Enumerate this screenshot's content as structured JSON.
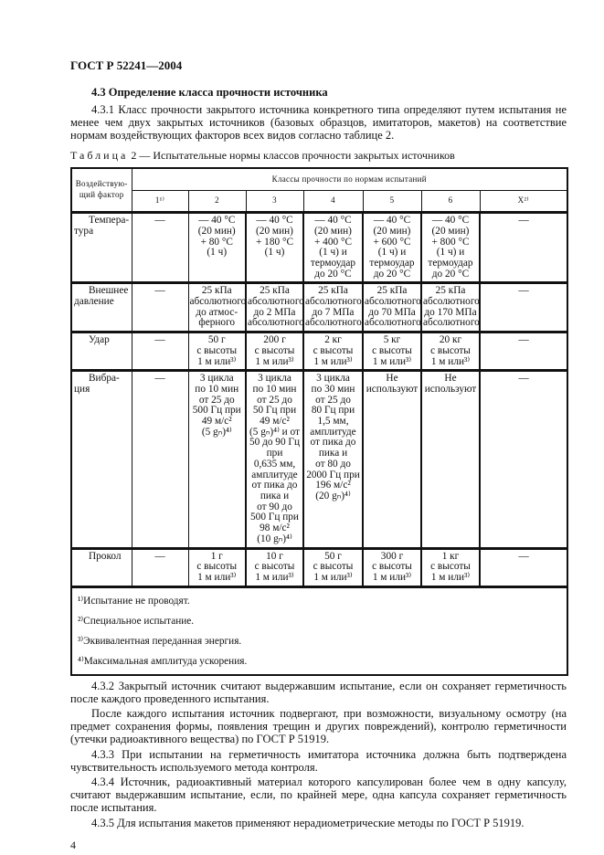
{
  "header": "ГОСТ Р 52241—2004",
  "section_title": "4.3 Определение класса прочности источника",
  "para_431": "4.3.1 Класс прочности закрытого источника конкретного типа определяют путем испытания не менее чем двух закрытых источников (базовых образцов, имитаторов, макетов) на соответствие нормам воздействующих факторов всех видов согласно таблице 2.",
  "table_caption": {
    "label": "Таблица",
    "rest": " 2 — Испытательные нормы классов прочности закрытых источников"
  },
  "table": {
    "factor_header": "Воздействую-щий фактор",
    "classes_header": "Классы прочности по нормам испытаний",
    "classes": [
      "1¹⁾",
      "2",
      "3",
      "4",
      "5",
      "6",
      "X²⁾"
    ],
    "rows": [
      {
        "factor": [
          "Темпера-",
          "тура"
        ],
        "cells": [
          [
            "—"
          ],
          [
            "— 40 °C",
            "(20 мин)",
            "+ 80 °C",
            "(1 ч)"
          ],
          [
            "— 40 °C",
            "(20 мин)",
            "+ 180 °C",
            "(1 ч)"
          ],
          [
            "— 40 °C",
            "(20 мин)",
            "+ 400 °C",
            "(1 ч) и",
            "термоудар",
            "до 20 °C"
          ],
          [
            "— 40 °C",
            "(20 мин)",
            "+ 600 °C",
            "(1 ч) и",
            "термоудар",
            "до 20 °C"
          ],
          [
            "— 40 °C",
            "(20 мин)",
            "+ 800 °C",
            "(1 ч) и",
            "термоудар",
            "до 20 °C"
          ],
          [
            "—"
          ]
        ]
      },
      {
        "factor": [
          "Внешнее",
          "давление"
        ],
        "cells": [
          [
            "—"
          ],
          [
            "25 кПа",
            "абсолютного",
            "до атмос-",
            "ферного"
          ],
          [
            "25 кПа",
            "абсолютного",
            "до 2 МПа",
            "абсолютного"
          ],
          [
            "25 кПа",
            "абсолютного",
            "до 7 МПа",
            "абсолютного"
          ],
          [
            "25 кПа",
            "абсолютного",
            "до 70 МПа",
            "абсолютного"
          ],
          [
            "25 кПа",
            "абсолютного",
            "до 170 МПа",
            "абсолютного"
          ],
          [
            "—"
          ]
        ]
      },
      {
        "factor": [
          "Удар"
        ],
        "cells": [
          [
            "—"
          ],
          [
            "50 г",
            "с высоты",
            "1 м или³⁾"
          ],
          [
            "200 г",
            "с высоты",
            "1 м или³⁾"
          ],
          [
            "2 кг",
            "с высоты",
            "1 м или³⁾"
          ],
          [
            "5 кг",
            "с высоты",
            "1 м или³⁾"
          ],
          [
            "20 кг",
            "с высоты",
            "1 м или³⁾"
          ],
          [
            "—"
          ]
        ]
      },
      {
        "factor": [
          "Вибра-",
          "ция"
        ],
        "cells": [
          [
            "—"
          ],
          [
            "3 цикла",
            "по 10 мин",
            "от 25 до",
            "500 Гц при",
            "49 м/с²",
            "(5 gₙ)⁴⁾"
          ],
          [
            "3 цикла",
            "по 10 мин",
            "от 25 до",
            "50 Гц при",
            "49 м/с²",
            "(5 gₙ)⁴⁾ и от",
            "50 до 90 Гц",
            "при",
            "0,635 мм,",
            "амплитуде",
            "от пика до",
            "пика и",
            "от 90 до",
            "500 Гц при",
            "98 м/с²",
            "(10 gₙ)⁴⁾"
          ],
          [
            "3 цикла",
            "по 30 мин",
            "от 25 до",
            "80 Гц при",
            "1,5 мм,",
            "амплитуде",
            "от пика до",
            "пика и",
            "от 80 до",
            "2000 Гц при",
            "196 м/с²",
            "(20 gₙ)⁴⁾"
          ],
          [
            "Не",
            "используют"
          ],
          [
            "Не",
            "используют"
          ],
          [
            "—"
          ]
        ]
      },
      {
        "factor": [
          "Прокол"
        ],
        "cells": [
          [
            "—"
          ],
          [
            "1 г",
            "с высоты",
            "1 м или³⁾"
          ],
          [
            "10 г",
            "с высоты",
            "1 м или³⁾"
          ],
          [
            "50 г",
            "с высоты",
            "1 м или³⁾"
          ],
          [
            "300 г",
            "с высоты",
            "1 м или³⁾"
          ],
          [
            "1 кг",
            "с высоты",
            "1 м или³⁾"
          ],
          [
            "—"
          ]
        ]
      }
    ],
    "footnotes": [
      "¹⁾Испытание не проводят.",
      "²⁾Специальное испытание.",
      "³⁾Эквивалентная переданная энергия.",
      "⁴⁾Максимальная амплитуда ускорения."
    ]
  },
  "para_432": "4.3.2 Закрытый источник считают выдержавшим испытание, если он сохраняет герметичность после каждого проведенного испытания.",
  "para_432b": "После каждого испытания источник подвергают, при возможности, визуальному осмотру (на предмет сохранения формы, появления трещин и других повреждений), контролю герметичности (утечки радиоактивного вещества) по ГОСТ Р 51919.",
  "para_433": "4.3.3 При испытании на герметичность имитатора источника должна быть подтверждена чувствительность используемого метода контроля.",
  "para_434": "4.3.4 Источник, радиоактивный материал которого капсулирован более чем в одну капсулу, считают выдержавшим испытание, если, по крайней мере, одна капсула сохраняет герметичность после испытания.",
  "para_435": "4.3.5 Для испытания макетов применяют нерадиометрические методы по ГОСТ Р 51919.",
  "page_number": "4"
}
